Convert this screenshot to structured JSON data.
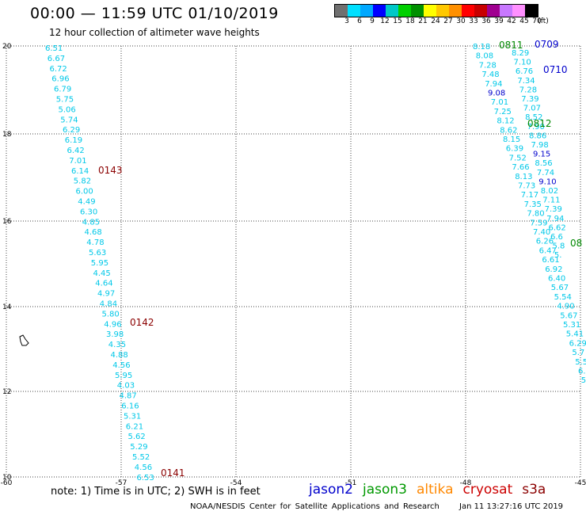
{
  "title": "00:00 — 11:59 UTC 01/10/2019",
  "subtitle": "12 hour collection of altimeter wave heights",
  "legend": {
    "unit": "(ft)",
    "colors": [
      "#707070",
      "#00e0ff",
      "#00a8ff",
      "#0000ff",
      "#00c8c8",
      "#00d000",
      "#009000",
      "#ffff00",
      "#ffc800",
      "#ff9000",
      "#ff0000",
      "#c80000",
      "#a00090",
      "#c878ff",
      "#ff90ff",
      "#000000"
    ],
    "labels": [
      "3",
      "6",
      "9",
      "12",
      "15",
      "18",
      "21",
      "24",
      "27",
      "30",
      "33",
      "36",
      "39",
      "42",
      "45",
      "70"
    ]
  },
  "axes": {
    "x_ticks": [
      "-60",
      "-57",
      "-54",
      "-51",
      "-48",
      "-45"
    ],
    "y_ticks": [
      "20",
      "18",
      "16",
      "14",
      "12",
      "10"
    ]
  },
  "pass_colors": {
    "cryosat": "#8b0000",
    "jason2": "#0000cc",
    "jason3": "#008800",
    "wave": "#00c8e8",
    "wave_high": "#0000cc"
  },
  "passes": [
    {
      "id": "0143",
      "sat": "cryosat"
    },
    {
      "id": "0142",
      "sat": "cryosat"
    },
    {
      "id": "0141",
      "sat": "cryosat"
    },
    {
      "id": "0811",
      "sat": "jason3"
    },
    {
      "id": "0812",
      "sat": "jason3"
    },
    {
      "id": "08",
      "sat": "jason3"
    },
    {
      "id": "0709",
      "sat": "jason2"
    },
    {
      "id": "0710",
      "sat": "jason2"
    }
  ],
  "track_left": [
    "6.51",
    "6.67",
    "6.72",
    "6.96",
    "6.79",
    "5.75",
    "5.06",
    "5.74",
    "6.29",
    "6.19",
    "6.42",
    "7.01",
    "6.14",
    "5.82",
    "6.00",
    "4.49",
    "6.30",
    "4.85",
    "4.68",
    "4.78",
    "5.63",
    "5.95",
    "4.45",
    "4.64",
    "4.97",
    "4.84",
    "5.80",
    "4.96",
    "3.98",
    "4.35",
    "4.88",
    "4.56",
    "5.95",
    "4.03",
    "4.87",
    "6.16",
    "5.31",
    "6.21",
    "5.62",
    "5.29",
    "5.52",
    "4.56",
    "6.53"
  ],
  "track_r1": [
    "8.18",
    "8.08",
    "7.28",
    "7.48",
    "7.94",
    "9.08",
    "7.01",
    "7.25",
    "8.12",
    "8.62",
    "8.15",
    "6.39",
    "7.52",
    "7.66",
    "8.13",
    "7.73",
    "7.17",
    "7.35",
    "7.80",
    "7.59",
    "7.40",
    "6.26",
    "6.47",
    "6.61",
    "6.92",
    "6.40",
    "5.67",
    "5.54",
    "4.90",
    "5.67",
    "5.31",
    "5.41",
    "6.29",
    "5.7",
    "5.5",
    "6.",
    "5."
  ],
  "track_r2": [
    "8.29",
    "7.10",
    "6.76",
    "7.34",
    "7.28",
    "7.39",
    "7.07",
    "8.52",
    "7.90",
    "8.86",
    "7.98",
    "9.15",
    "8.56",
    "7.74",
    "9.10",
    "8.02",
    "7.11",
    "7.39",
    "7.94",
    "6.62",
    "6.6",
    "5.8",
    "5."
  ],
  "note": "note: 1) Time is in UTC; 2) SWH is in feet",
  "satellites": [
    {
      "name": "jason2",
      "color": "#0000cc"
    },
    {
      "name": "jason3",
      "color": "#009900"
    },
    {
      "name": "altika",
      "color": "#ff8800"
    },
    {
      "name": "cryosat",
      "color": "#cc0000"
    },
    {
      "name": "s3a",
      "color": "#8b0000"
    }
  ],
  "footer": "NOAA/NESDIS Center for Satellite Applications and Research",
  "footer_time": "Jan 11 13:27:16 UTC 2019"
}
